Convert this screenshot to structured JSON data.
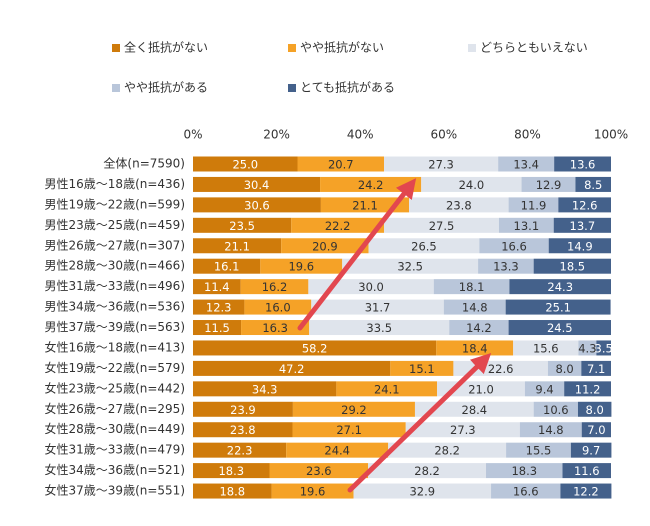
{
  "chart_data": {
    "type": "stacked-bar-horizontal",
    "categories": [
      "全体(n=7590)",
      "男性16歳～18歳(n=436)",
      "男性19歳～22歳(n=599)",
      "男性23歳～25歳(n=459)",
      "男性26歳～27歳(n=307)",
      "男性28歳～30歳(n=466)",
      "男性31歳～33歳(n=496)",
      "男性34歳～36歳(n=536)",
      "男性37歳～39歳(n=563)",
      "女性16歳～18歳(n=413)",
      "女性19歳～22歳(n=579)",
      "女性23歳～25歳(n=442)",
      "女性26歳～27歳(n=295)",
      "女性28歳～30歳(n=449)",
      "女性31歳～33歳(n=479)",
      "女性34歳～36歳(n=521)",
      "女性37歳～39歳(n=551)"
    ],
    "series": [
      {
        "name": "全く抵抗がない",
        "color": "#cf7b0b",
        "values": [
          25.0,
          30.4,
          30.6,
          23.5,
          21.1,
          16.1,
          11.4,
          12.3,
          11.5,
          58.2,
          47.2,
          34.3,
          23.9,
          23.8,
          22.3,
          18.3,
          18.8
        ],
        "value_labels": [
          "25.0",
          "30.4",
          "30.6",
          "23.5",
          "21.1",
          "16.1",
          "11.4",
          "12.3",
          "11.5",
          "58.2",
          "47.2",
          "34.3",
          "23.9",
          "23.8",
          "22.3",
          "18.3",
          "18.8"
        ]
      },
      {
        "name": "やや抵抗がない",
        "color": "#f5a227",
        "values": [
          20.7,
          24.2,
          21.1,
          22.2,
          20.9,
          19.6,
          16.2,
          16.0,
          16.3,
          18.4,
          15.1,
          24.1,
          29.2,
          27.1,
          24.4,
          23.6,
          19.6
        ],
        "value_labels": [
          "20.7",
          "24.2",
          "21.1",
          "22.2",
          "20.9",
          "19.6",
          "16.2",
          "16.0",
          "16.3",
          "18.4",
          "15.1",
          "24.1",
          "29.2",
          "27.1",
          "24.4",
          "23.6",
          "19.6"
        ]
      },
      {
        "name": "どちらともいえない",
        "color": "#dfe4ec",
        "values": [
          27.3,
          24.0,
          23.8,
          27.5,
          26.5,
          32.5,
          30.0,
          31.7,
          33.5,
          15.6,
          22.6,
          21.0,
          28.4,
          27.3,
          28.2,
          28.2,
          32.9
        ],
        "value_labels": [
          "27.3",
          "24.0",
          "23.8",
          "27.5",
          "26.5",
          "32.5",
          "30.0",
          "31.7",
          "33.5",
          "15.6",
          "22.6",
          "21.0",
          "28.4",
          "27.3",
          "28.2",
          "28.2",
          "32.9"
        ]
      },
      {
        "name": "やや抵抗がある",
        "color": "#b9c6da",
        "values": [
          13.4,
          12.9,
          11.9,
          13.1,
          16.6,
          13.3,
          18.1,
          14.8,
          14.2,
          4.3,
          8.0,
          9.4,
          10.6,
          14.8,
          15.5,
          18.3,
          16.6
        ],
        "value_labels": [
          "13.4",
          "12.9",
          "11.9",
          "13.1",
          "16.6",
          "13.3",
          "18.1",
          "14.8",
          "14.2",
          "4.3",
          "8.0",
          "9.4",
          "10.6",
          "14.8",
          "15.5",
          "18.3",
          "16.6"
        ]
      },
      {
        "name": "とても抵抗がある",
        "color": "#44618b",
        "values": [
          13.6,
          8.5,
          12.6,
          13.7,
          14.9,
          18.5,
          24.3,
          25.1,
          24.5,
          3.5,
          7.1,
          11.2,
          8.0,
          7.0,
          9.7,
          11.6,
          12.2
        ],
        "value_labels": [
          "13.6",
          "8.5",
          "12.6",
          "13.7",
          "14.9",
          "18.5",
          "24.3",
          "25.1",
          "24.5",
          "3.5",
          "7.1",
          "11.2",
          "8.0",
          "7.0",
          "9.7",
          "11.6",
          "12.2"
        ]
      }
    ],
    "xlim": [
      0,
      100
    ],
    "xticks": [
      {
        "value": 0,
        "label": "0%"
      },
      {
        "value": 20,
        "label": "20%"
      },
      {
        "value": 40,
        "label": "40%"
      },
      {
        "value": 60,
        "label": "60%"
      },
      {
        "value": 80,
        "label": "80%"
      },
      {
        "value": 100,
        "label": "100%"
      }
    ],
    "grid": false
  }
}
